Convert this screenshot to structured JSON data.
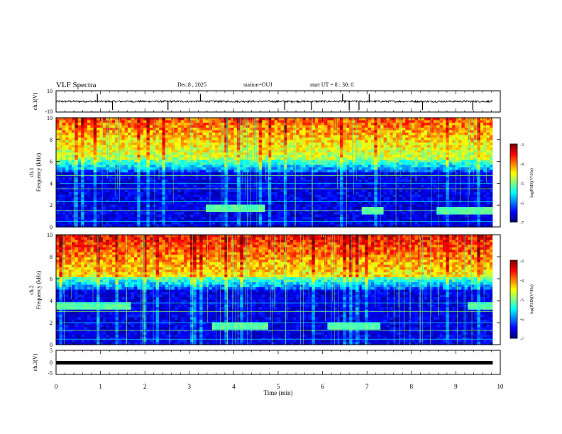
{
  "header": {
    "title": "VLF Spectra",
    "date": "Dec.8 , 2025",
    "station": "station=OUJ",
    "start": "start UT =  8 : 30: 0"
  },
  "chart_data": [
    {
      "type": "line",
      "panel": "ch1-waveform",
      "ylabel": "ch.1(V)",
      "ylim": [
        -10,
        10
      ],
      "yticks": [
        "10",
        "-10"
      ],
      "baseline": 0,
      "spike_times_min": [
        0.93,
        1.27,
        2.52,
        3.25,
        5.15,
        5.75,
        6.45,
        6.6,
        6.82,
        7.05,
        8.25,
        9.38
      ]
    },
    {
      "type": "heatmap",
      "panel": "ch1-spectrogram",
      "ylabel": "ch.1\nFrequency (kHz)",
      "ylim": [
        0,
        10
      ],
      "yticks": [
        "0",
        "2",
        "4",
        "6",
        "8",
        "10"
      ],
      "colorbar": {
        "label": "log(PSD)(V²/Hz)",
        "range": [
          -7,
          -3
        ],
        "ticks": [
          "-3",
          "-4",
          "-5",
          "-6",
          "-7"
        ]
      },
      "narrowband_khz": [
        0.5,
        1.5,
        2.3,
        3.5,
        4.0,
        4.7
      ],
      "enhancement_bands": [
        {
          "t": [
            3.4,
            4.7
          ],
          "f": 1.6
        },
        {
          "t": [
            6.9,
            7.4
          ],
          "f": 1.5
        },
        {
          "t": [
            8.6,
            9.8
          ],
          "f": 1.5
        }
      ]
    },
    {
      "type": "heatmap",
      "panel": "ch2-spectrogram",
      "ylabel": "ch.2\nFrequency (kHz)",
      "ylim": [
        0,
        10
      ],
      "yticks": [
        "0",
        "2",
        "4",
        "6",
        "8",
        "10"
      ],
      "colorbar": {
        "label": "log(PSD)(V²/Hz)",
        "range": [
          -7,
          -3
        ],
        "ticks": [
          "-3",
          "-4",
          "-5",
          "-6",
          "-7"
        ]
      },
      "narrowband_khz": [
        0.5,
        1.3,
        2.0,
        3.0,
        3.8
      ],
      "enhancement_bands": [
        {
          "t": [
            0.0,
            1.7
          ],
          "f": 3.6
        },
        {
          "t": [
            3.5,
            4.8
          ],
          "f": 1.7
        },
        {
          "t": [
            6.1,
            7.3
          ],
          "f": 1.6
        },
        {
          "t": [
            9.3,
            9.8
          ],
          "f": 3.6
        }
      ]
    },
    {
      "type": "line",
      "panel": "ch3-waveform",
      "ylabel": "ch.3(V)",
      "ylim": [
        -5,
        5
      ],
      "yticks": [
        "5",
        "0",
        "-5"
      ],
      "baseline": 0
    }
  ],
  "xaxis": {
    "label": "Time (min)",
    "range": [
      0,
      10
    ],
    "ticks": [
      "0",
      "1",
      "2",
      "3",
      "4",
      "5",
      "6",
      "7",
      "8",
      "9",
      "10"
    ],
    "data_end_min": 9.83
  }
}
